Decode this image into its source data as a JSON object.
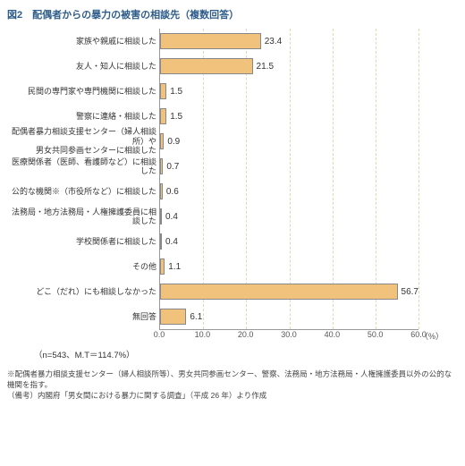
{
  "title": "図2　配偶者からの暴力の被害の相談先（複数回答）",
  "chart": {
    "type": "bar",
    "xmax": 60.0,
    "xtick_step": 10.0,
    "xunit": "（%）",
    "bar_color": "#f0c27b",
    "bar_border": "#888888",
    "grid_color": "#e3d5b8",
    "categories": [
      "家族や親戚に相談した",
      "友人・知人に相談した",
      "民間の専門家や専門機関に相談した",
      "警察に連絡・相談した",
      "配偶者暴力相談支援センター（婦人相談所）や\n男女共同参画センターに相談した",
      "医療関係者（医師、看護師など）に相談した",
      "公的な機関※（市役所など）に相談した",
      "法務局・地方法務局・人権擁護委員に相談した",
      "学校関係者に相談した",
      "その他",
      "どこ（だれ）にも相談しなかった",
      "無回答"
    ],
    "values": [
      23.4,
      21.5,
      1.5,
      1.5,
      0.9,
      0.7,
      0.6,
      0.4,
      0.4,
      1.1,
      56.7,
      6.1
    ]
  },
  "n_text": "（n=543、M.T＝114.7%）",
  "xticks": [
    "0.0",
    "10.0",
    "20.0",
    "30.0",
    "40.0",
    "50.0",
    "60.0"
  ],
  "note1": "※配偶者暴力相談支援センター（婦人相談所等）、男女共同参画センター、警察、法務局・地方法務局・人権擁護委員以外の公的な機関を指す。",
  "note2": "（備考）内閣府「男女間における暴力に関する調査」（平成 26 年）より作成"
}
